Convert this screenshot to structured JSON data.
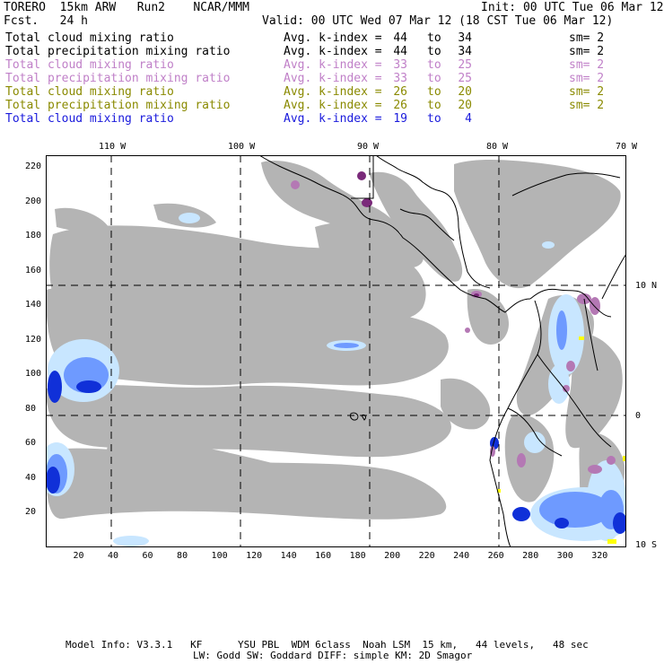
{
  "header": {
    "left_line1": "TORERO  15km ARW   Run2    NCAR/MMM",
    "left_line2": "Fcst.   24 h",
    "init": "Init: 00 UTC Tue 06 Mar 12",
    "valid": "Valid: 00 UTC Wed 07 Mar 12 (18 CST Tue 06 Mar 12)"
  },
  "legend": [
    {
      "label": "Total cloud mixing ratio",
      "avg": "Avg. k-index =",
      "hi": "44",
      "to": "to",
      "lo": "34",
      "sm": "sm= 2",
      "color": "#000000"
    },
    {
      "label": "Total precipitation mixing ratio",
      "avg": "Avg. k-index =",
      "hi": "44",
      "to": "to",
      "lo": "34",
      "sm": "sm= 2",
      "color": "#000000"
    },
    {
      "label": "Total cloud mixing ratio",
      "avg": "Avg. k-index =",
      "hi": "33",
      "to": "to",
      "lo": "25",
      "sm": "sm= 2",
      "color": "#c080c8"
    },
    {
      "label": "Total precipitation mixing ratio",
      "avg": "Avg. k-index =",
      "hi": "33",
      "to": "to",
      "lo": "25",
      "sm": "sm= 2",
      "color": "#c080c8"
    },
    {
      "label": "Total cloud mixing ratio",
      "avg": "Avg. k-index =",
      "hi": "26",
      "to": "to",
      "lo": "20",
      "sm": "sm= 2",
      "color": "#8a8a00"
    },
    {
      "label": "Total precipitation mixing ratio",
      "avg": "Avg. k-index =",
      "hi": "26",
      "to": "to",
      "lo": "20",
      "sm": "sm= 2",
      "color": "#8a8a00"
    },
    {
      "label": "Total cloud mixing ratio",
      "avg": "Avg. k-index =",
      "hi": "19",
      "to": "to",
      "lo": "4",
      "sm": "",
      "color": "#1a1adc"
    }
  ],
  "map": {
    "lon_labels": [
      "110 W",
      "100 W",
      "90 W",
      "80 W",
      "70 W"
    ],
    "lat_labels": [
      "10 N",
      "0",
      "10 S"
    ],
    "y_ticks": [
      "220",
      "200",
      "180",
      "160",
      "140",
      "120",
      "100",
      "80",
      "60",
      "40",
      "20"
    ],
    "x_ticks": [
      "20",
      "40",
      "60",
      "80",
      "100",
      "120",
      "140",
      "160",
      "180",
      "200",
      "220",
      "240",
      "260",
      "280",
      "300",
      "320"
    ],
    "colors": {
      "cloud": "#b4b4b4",
      "precip_light": "#c8e6ff",
      "precip_mid": "#6e9aff",
      "precip_heavy": "#1030d8",
      "k_mid": "#b478b4",
      "k_dark": "#7a2a7a",
      "k_yellow": "#ffff00"
    }
  },
  "footer": {
    "line1": "Model Info: V3.3.1   KF      YSU PBL  WDM 6class  Noah LSM  15 km,   44 levels,   48 sec",
    "line2": "LW: Godd SW: Goddard DIFF: simple KM: 2D Smagor"
  }
}
